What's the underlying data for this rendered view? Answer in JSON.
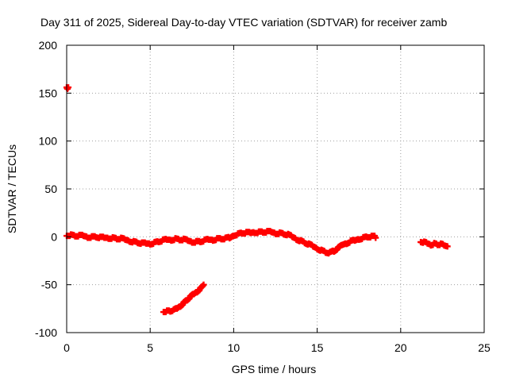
{
  "chart_data": {
    "type": "scatter",
    "title": "Day 311 of 2025, Sidereal Day-to-day VTEC variation (SDTVAR) for receiver zamb",
    "xlabel": "GPS time / hours",
    "ylabel": "SDTVAR / TECUs",
    "xlim": [
      0,
      25
    ],
    "ylim": [
      -100,
      200
    ],
    "xticks": [
      0,
      5,
      10,
      15,
      20,
      25
    ],
    "yticks": [
      -100,
      -50,
      0,
      50,
      100,
      150,
      200
    ],
    "xtick_labels": [
      "0",
      "5",
      "10",
      "15",
      "20",
      "25"
    ],
    "ytick_labels": [
      "-100",
      "-50",
      "0",
      "50",
      "100",
      "150",
      "200"
    ],
    "grid": true,
    "legend": "none",
    "marker": "plus",
    "colors": {
      "series": "#ff0000",
      "axis": "#000000",
      "grid": "#a0a0a0"
    },
    "series": [
      {
        "name": "outlier",
        "x": [
          0.0,
          0.05,
          0.1
        ],
        "y": [
          156,
          155,
          155
        ]
      },
      {
        "name": "main",
        "x": [
          0.0,
          0.25,
          0.5,
          0.75,
          1.0,
          1.25,
          1.5,
          1.75,
          2.0,
          2.25,
          2.5,
          2.75,
          3.0,
          3.25,
          3.5,
          3.75,
          4.0,
          4.25,
          4.5,
          4.75,
          5.0,
          5.25,
          5.5,
          5.75,
          6.0,
          6.25,
          6.5,
          6.75,
          7.0,
          7.25,
          7.5,
          7.75,
          8.0,
          8.25,
          8.5,
          8.75,
          9.0,
          9.25,
          9.5,
          9.75,
          10.0,
          10.25,
          10.5,
          10.75,
          11.0,
          11.25,
          11.5,
          11.75,
          12.0,
          12.25,
          12.5,
          12.75,
          13.0,
          13.25,
          13.5,
          13.75,
          14.0,
          14.25,
          14.5,
          14.75,
          15.0,
          15.25,
          15.5,
          15.75,
          16.0,
          16.25,
          16.5,
          16.75,
          17.0,
          17.25,
          17.5,
          17.75,
          18.0,
          18.25,
          18.5
        ],
        "y": [
          2,
          2,
          1,
          1,
          1,
          0,
          0,
          0,
          -1,
          -1,
          -1,
          -1,
          -2,
          -2,
          -3,
          -4,
          -5,
          -6,
          -7,
          -7,
          -7,
          -6,
          -5,
          -4,
          -3,
          -3,
          -2,
          -3,
          -3,
          -4,
          -5,
          -5,
          -5,
          -4,
          -3,
          -3,
          -2,
          -2,
          -2,
          -1,
          2,
          3,
          4,
          4,
          4,
          5,
          5,
          5,
          5,
          5,
          4,
          4,
          3,
          2,
          0,
          -2,
          -4,
          -6,
          -8,
          -10,
          -12,
          -14,
          -16,
          -17,
          -15,
          -12,
          -9,
          -7,
          -5,
          -4,
          -2,
          -1,
          0,
          0,
          0
        ]
      },
      {
        "name": "late segment",
        "x": [
          21.2,
          21.4,
          21.6,
          21.8,
          22.0,
          22.2,
          22.4,
          22.6,
          22.8
        ],
        "y": [
          -5,
          -6,
          -7,
          -8,
          -7,
          -8,
          -8,
          -9,
          -10
        ]
      },
      {
        "name": "low arc",
        "x": [
          5.8,
          6.0,
          6.2,
          6.4,
          6.6,
          6.8,
          7.0,
          7.2,
          7.4,
          7.6,
          7.8,
          8.0,
          8.2
        ],
        "y": [
          -78,
          -78,
          -78,
          -77,
          -75,
          -72,
          -69,
          -66,
          -63,
          -60,
          -57,
          -54,
          -51
        ]
      }
    ]
  }
}
